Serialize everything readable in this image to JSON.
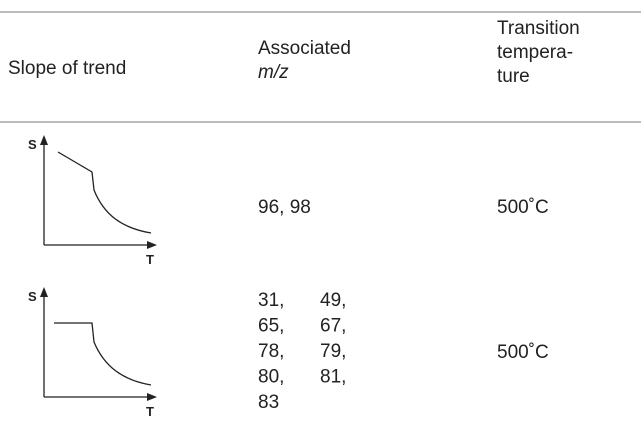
{
  "table": {
    "headers": [
      {
        "text": "Slope of trend"
      },
      {
        "text": "Associated",
        "italic": "m/z"
      },
      {
        "lines": [
          "Transition",
          "tempera-",
          "ture"
        ]
      }
    ],
    "rows": [
      {
        "axis_labels": [
          "S",
          "T"
        ],
        "mz": [
          "96, 98"
        ],
        "temperature": "500˚C"
      },
      {
        "axis_labels": [
          "S",
          "T"
        ],
        "mz": [
          "31,",
          "49,",
          "65,",
          "67,",
          "78,",
          "79,",
          "80,",
          "81,",
          "83"
        ],
        "temperature": "500˚C"
      }
    ]
  }
}
